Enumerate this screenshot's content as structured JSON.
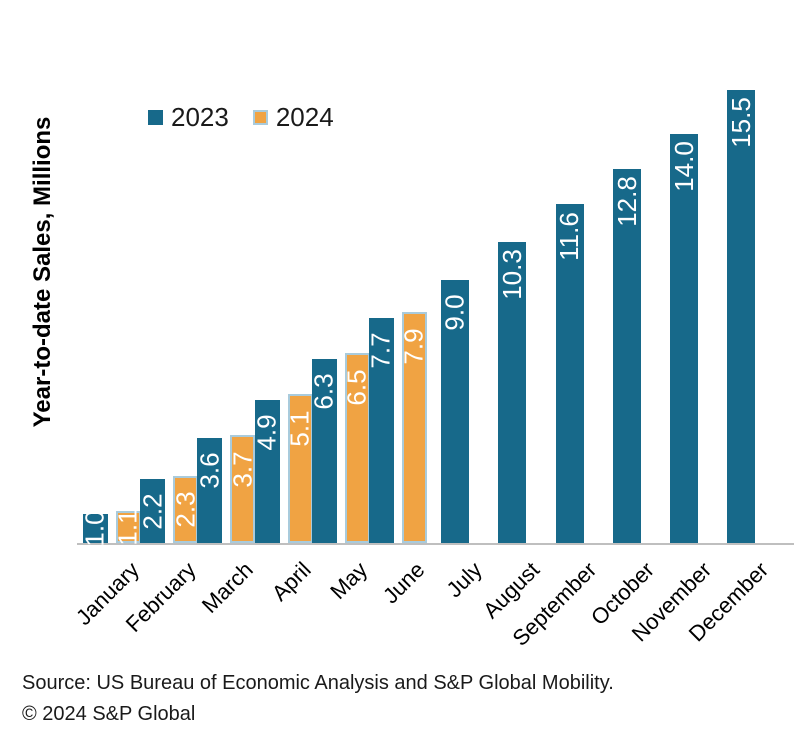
{
  "chart_data": {
    "type": "bar",
    "title": "",
    "ylabel": "Year-to-date Sales, Millions",
    "xlabel": "",
    "categories": [
      "January",
      "February",
      "March",
      "April",
      "May",
      "June",
      "July",
      "August",
      "September",
      "October",
      "November",
      "December"
    ],
    "series": [
      {
        "name": "2023",
        "color": "#17698A",
        "values": [
          1.0,
          2.2,
          3.6,
          4.9,
          6.3,
          7.7,
          9.0,
          10.3,
          11.6,
          12.8,
          14.0,
          15.5
        ]
      },
      {
        "name": "2024",
        "color": "#F0A343",
        "border_color": "#A9CBDC",
        "values": [
          1.1,
          2.3,
          3.7,
          5.1,
          6.5,
          7.9,
          null,
          null,
          null,
          null,
          null,
          null
        ]
      }
    ],
    "ylim": [
      0,
      15.5
    ],
    "grid": false,
    "legend_position": "top-left",
    "value_labels": "inside-end, rotated 90deg, one decimal",
    "value_label_color": "#FFFFFF",
    "axis_line_color": "#BFBFBF"
  },
  "footer": {
    "source": "Source: US Bureau of Economic Analysis and S&P Global Mobility.",
    "copyright": "© 2024 S&P Global"
  }
}
